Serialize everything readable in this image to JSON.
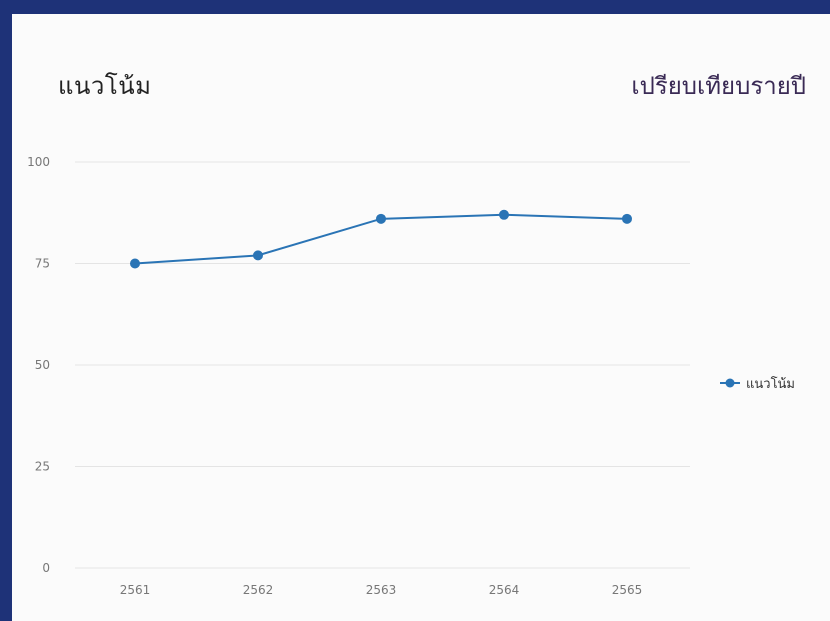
{
  "header": {
    "title": "แนวโน้ม",
    "subtitle": "เปรียบเทียบรายปี"
  },
  "colors": {
    "series": "#2a74b5",
    "gridline": "#e4e4e4",
    "frame": "#1e3278"
  },
  "chart_data": {
    "type": "line",
    "title": "แนวโน้ม",
    "x": [
      "2561",
      "2562",
      "2563",
      "2564",
      "2565"
    ],
    "series": [
      {
        "name": "แนวโน้ม",
        "values": [
          75,
          77,
          86,
          87,
          86
        ]
      }
    ],
    "ylim": [
      0,
      100
    ],
    "yticks": [
      0,
      25,
      50,
      75,
      100
    ],
    "grid": true,
    "legend": "right"
  }
}
